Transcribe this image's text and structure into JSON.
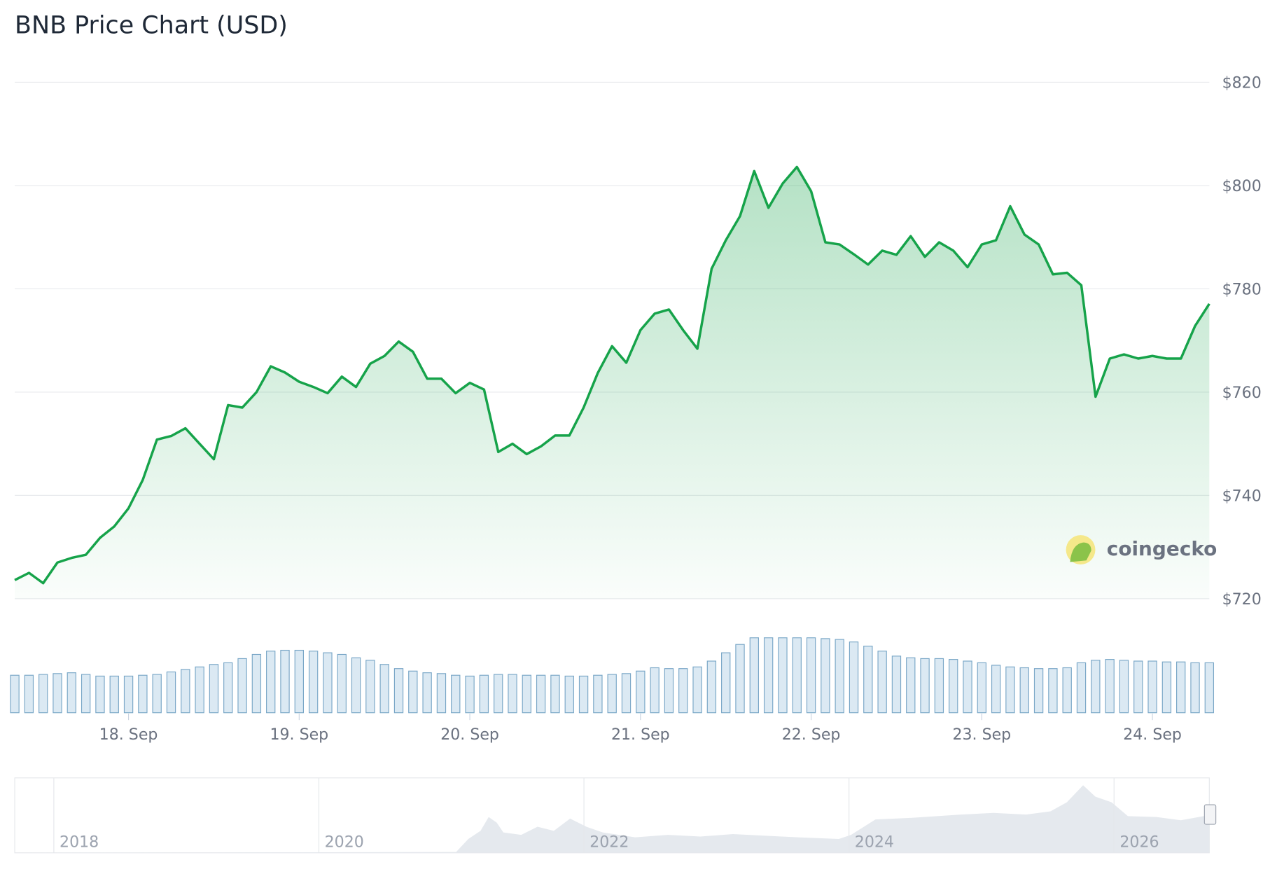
{
  "chart_data": {
    "type": "line",
    "title": "BNB Price Chart (USD)",
    "categories": [
      null,
      null,
      null,
      null,
      null,
      null,
      null,
      null,
      "18. Sep",
      null,
      null,
      null,
      null,
      null,
      null,
      null,
      null,
      null,
      null,
      null,
      "19. Sep",
      null,
      null,
      null,
      null,
      null,
      null,
      null,
      null,
      null,
      null,
      null,
      "20. Sep",
      null,
      null,
      null,
      null,
      null,
      null,
      null,
      null,
      null,
      null,
      null,
      "21. Sep",
      null,
      null,
      null,
      null,
      null,
      null,
      null,
      null,
      null,
      null,
      null,
      "22. Sep",
      null,
      null,
      null,
      null,
      null,
      null,
      null,
      null,
      null,
      null,
      null,
      "23. Sep",
      null,
      null,
      null,
      null,
      null,
      null,
      null,
      null,
      null,
      null,
      null,
      "24. Sep",
      null,
      null,
      null,
      null
    ],
    "series": [
      {
        "color": "#16a34a",
        "values": [
          723.6,
          725,
          723,
          727,
          727.9,
          728.5,
          731.8,
          734,
          737.5,
          743,
          750.8,
          751.5,
          753,
          750,
          747,
          757.5,
          757,
          760,
          765,
          763.8,
          762,
          761,
          759.8,
          763,
          761,
          765.5,
          767,
          769.8,
          767.8,
          762.6,
          762.6,
          759.8,
          761.8,
          760.5,
          748.4,
          750,
          748,
          749.5,
          751.6,
          751.6,
          757,
          763.7,
          768.9,
          765.7,
          772,
          775.2,
          776,
          772,
          768.4,
          783.9,
          789.4,
          794.1,
          802.8,
          795.7,
          800.4,
          803.6,
          798.9,
          789,
          788.6,
          786.7,
          784.7,
          787.4,
          786.6,
          790.2,
          786.2,
          789,
          787.4,
          784.2,
          788.6,
          789.4,
          796,
          790.5,
          788.6,
          782.8,
          783.1,
          780.7,
          759.1,
          766.5,
          767.3,
          766.5,
          767,
          766.5,
          766.5,
          772.8,
          777.1
        ]
      }
    ],
    "volume": [
      45,
      45,
      46,
      47,
      48,
      46,
      44,
      44,
      44,
      45,
      46,
      49,
      52,
      55,
      58,
      60,
      65,
      70,
      74,
      75,
      75,
      74,
      72,
      70,
      66,
      63,
      58,
      53,
      50,
      48,
      47,
      45,
      44,
      45,
      46,
      46,
      45,
      45,
      45,
      44,
      44,
      45,
      46,
      47,
      50,
      54,
      53,
      53,
      55,
      62,
      72,
      82,
      90,
      90,
      90,
      90,
      90,
      89,
      88,
      85,
      80,
      74,
      68,
      66,
      65,
      65,
      64,
      62,
      60,
      57,
      55,
      54,
      53,
      53,
      54,
      60,
      63,
      64,
      63,
      62,
      62,
      61,
      61,
      60,
      60
    ],
    "volume_color": "#7aa7c7",
    "ylim": [
      720,
      820
    ],
    "yticks": [
      {
        "value": 720,
        "label": "$720"
      },
      {
        "value": 740,
        "label": "$740"
      },
      {
        "value": 760,
        "label": "$760"
      },
      {
        "value": 780,
        "label": "$780"
      },
      {
        "value": 800,
        "label": "$800"
      },
      {
        "value": 820,
        "label": "$820"
      }
    ],
    "grid": true,
    "watermark": "coingecko",
    "navigator": {
      "labels": [
        "2018",
        "2020",
        "2022",
        "2024",
        "2026"
      ]
    }
  }
}
